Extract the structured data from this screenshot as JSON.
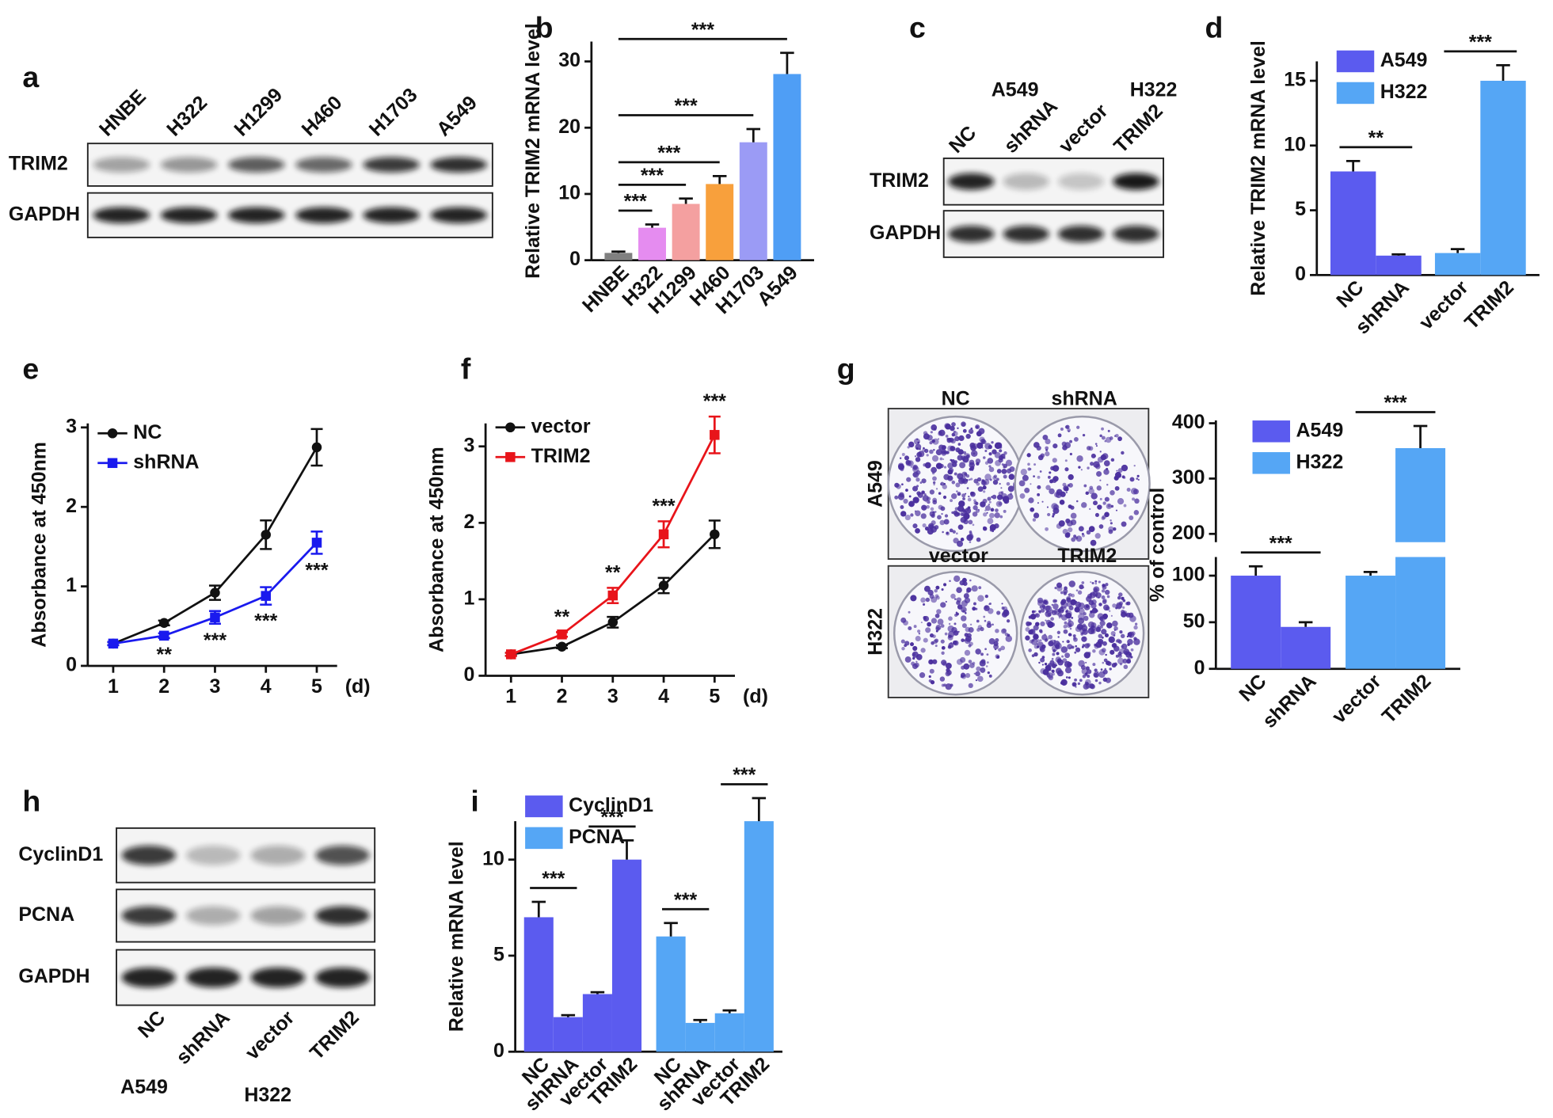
{
  "blots": [
    {
      "panel": "a",
      "lanes": [
        "HNBE",
        "H322",
        "H1299",
        "H460",
        "H1703",
        "A549"
      ],
      "rows": [
        "TRIM2",
        "GAPDH"
      ]
    },
    {
      "panel": "c",
      "groups": [
        "A549",
        "H322"
      ],
      "lanes": [
        "NC",
        "shRNA",
        "vector",
        "TRIM2"
      ],
      "rows": [
        "TRIM2",
        "GAPDH"
      ]
    },
    {
      "panel": "h",
      "groups": [
        "A549",
        "H322"
      ],
      "lanes": [
        "NC",
        "shRNA",
        "vector",
        "TRIM2"
      ],
      "rows": [
        "CyclinD1",
        "PCNA",
        "GAPDH"
      ]
    }
  ],
  "colony_plates": {
    "panel": "g",
    "rows": [
      "A549",
      "H322"
    ],
    "plates": [
      "NC",
      "shRNA",
      "vector",
      "TRIM2"
    ]
  },
  "chart_data": [
    {
      "panel": "b",
      "type": "bar",
      "ylabel": "Relative TRIM2 mRNA level",
      "categories": [
        "HNBE",
        "H322",
        "H1299",
        "H460",
        "H1703",
        "A549"
      ],
      "values": [
        1.1,
        4.9,
        8.5,
        11.5,
        17.8,
        28.1
      ],
      "errors": [
        0.2,
        0.5,
        0.8,
        1.2,
        2.0,
        3.2
      ],
      "colors": [
        "#808080",
        "#e58cf0",
        "#f4a0a0",
        "#f8a03c",
        "#9b9bf5",
        "#4f9ef5"
      ],
      "ylim": [
        0,
        33
      ],
      "yticks": [
        0,
        10,
        20,
        30
      ],
      "significance": [
        {
          "from": 0,
          "to": 1,
          "label": "***"
        },
        {
          "from": 0,
          "to": 2,
          "label": "***"
        },
        {
          "from": 0,
          "to": 3,
          "label": "***"
        },
        {
          "from": 0,
          "to": 4,
          "label": "***"
        },
        {
          "from": 0,
          "to": 5,
          "label": "***"
        }
      ]
    },
    {
      "panel": "d",
      "type": "bar",
      "ylabel": "Relative TRIM2 mRNA level",
      "categories": [
        "NC",
        "shRNA",
        "vector",
        "TRIM2"
      ],
      "series": [
        {
          "name": "A549",
          "color": "#5b5bef",
          "values": [
            8.0,
            1.5,
            null,
            null
          ],
          "errors": [
            0.8,
            0.1,
            null,
            null
          ]
        },
        {
          "name": "H322",
          "color": "#55a6f5",
          "values": [
            null,
            null,
            1.7,
            15.0
          ],
          "errors": [
            null,
            null,
            0.3,
            1.2
          ]
        }
      ],
      "ylim": [
        0,
        16.5
      ],
      "yticks": [
        0,
        5,
        10,
        15
      ],
      "significance": [
        {
          "from": 0,
          "to": 1,
          "label": "**"
        },
        {
          "from": 2,
          "to": 3,
          "label": "***"
        }
      ]
    },
    {
      "panel": "e",
      "type": "line",
      "ylabel": "Absorbance at 450nm",
      "xlabel": "(d)",
      "x": [
        1,
        2,
        3,
        4,
        5
      ],
      "xlim": [
        0.5,
        5.4
      ],
      "ylim": [
        0,
        3.05
      ],
      "xticks": [
        1,
        2,
        3,
        4,
        5
      ],
      "yticks": [
        0,
        1,
        2,
        3
      ],
      "series": [
        {
          "name": "NC",
          "color": "#111111",
          "values": [
            0.28,
            0.54,
            0.92,
            1.65,
            2.75
          ],
          "errors": [
            0.02,
            0.03,
            0.09,
            0.18,
            0.23
          ]
        },
        {
          "name": "shRNA",
          "color": "#1a1aee",
          "values": [
            0.28,
            0.38,
            0.61,
            0.88,
            1.55
          ],
          "errors": [
            0.02,
            0.03,
            0.08,
            0.11,
            0.14
          ]
        }
      ],
      "annotations": [
        {
          "x": 2,
          "text": "**"
        },
        {
          "x": 3,
          "text": "***"
        },
        {
          "x": 4,
          "text": "***"
        },
        {
          "x": 5,
          "text": "***"
        }
      ]
    },
    {
      "panel": "f",
      "type": "line",
      "ylabel": "Absorbance at 450nm",
      "xlabel": "(d)",
      "x": [
        1,
        2,
        3,
        4,
        5
      ],
      "xlim": [
        0.5,
        5.4
      ],
      "ylim": [
        0,
        3.3
      ],
      "xticks": [
        1,
        2,
        3,
        4,
        5
      ],
      "yticks": [
        0,
        1,
        2,
        3
      ],
      "series": [
        {
          "name": "vector",
          "color": "#111111",
          "values": [
            0.28,
            0.38,
            0.7,
            1.18,
            1.85
          ],
          "errors": [
            0.02,
            0.02,
            0.07,
            0.1,
            0.18
          ]
        },
        {
          "name": "TRIM2",
          "color": "#e8141a",
          "values": [
            0.28,
            0.54,
            1.05,
            1.85,
            3.15
          ],
          "errors": [
            0.02,
            0.03,
            0.1,
            0.17,
            0.24
          ]
        }
      ],
      "annotations": [
        {
          "x": 2,
          "text": "**"
        },
        {
          "x": 3,
          "text": "**"
        },
        {
          "x": 4,
          "text": "***"
        },
        {
          "x": 5,
          "text": "***"
        }
      ]
    },
    {
      "type": "bar",
      "ylabel": "% of control",
      "categories": [
        "NC",
        "shRNA",
        "vector",
        "TRIM2"
      ],
      "series": [
        {
          "name": "A549",
          "color": "#5b5bef",
          "values": [
            100,
            45,
            null,
            null
          ],
          "errors": [
            10,
            5,
            null,
            null
          ]
        },
        {
          "name": "H322",
          "color": "#55a6f5",
          "values": [
            null,
            null,
            100,
            355
          ],
          "errors": [
            null,
            null,
            4,
            40
          ]
        }
      ],
      "ysegments": [
        {
          "ylim": [
            0,
            120
          ],
          "yticks": [
            0,
            50,
            100
          ]
        },
        {
          "ylim": [
            185,
            405
          ],
          "yticks": [
            200,
            300,
            400
          ]
        }
      ],
      "significance": [
        {
          "from": 0,
          "to": 1,
          "label": "***"
        },
        {
          "from": 2,
          "to": 3,
          "label": "***"
        }
      ]
    },
    {
      "panel": "i",
      "type": "bar",
      "ylabel": "Relative mRNA level",
      "categories": [
        "NC",
        "shRNA",
        "vector",
        "TRIM2",
        "NC",
        "shRNA",
        "vector",
        "TRIM2"
      ],
      "series": [
        {
          "name": "CyclinD1",
          "color": "#5b5bef",
          "values": [
            7.0,
            1.8,
            3.0,
            10.0,
            null,
            null,
            null,
            null
          ],
          "errors": [
            0.8,
            0.1,
            0.1,
            1.0,
            null,
            null,
            null,
            null
          ]
        },
        {
          "name": "PCNA",
          "color": "#55a6f5",
          "values": [
            null,
            null,
            null,
            null,
            6.0,
            1.5,
            2.0,
            12.0
          ],
          "errors": [
            null,
            null,
            null,
            null,
            0.7,
            0.15,
            0.15,
            1.2
          ]
        }
      ],
      "ylim": [
        0,
        12
      ],
      "yticks": [
        0,
        5,
        10
      ],
      "significance": [
        {
          "from": 0,
          "to": 1,
          "label": "***"
        },
        {
          "from": 2,
          "to": 3,
          "label": "***"
        },
        {
          "from": 4,
          "to": 5,
          "label": "***"
        },
        {
          "from": 6,
          "to": 7,
          "label": "***"
        }
      ]
    }
  ]
}
